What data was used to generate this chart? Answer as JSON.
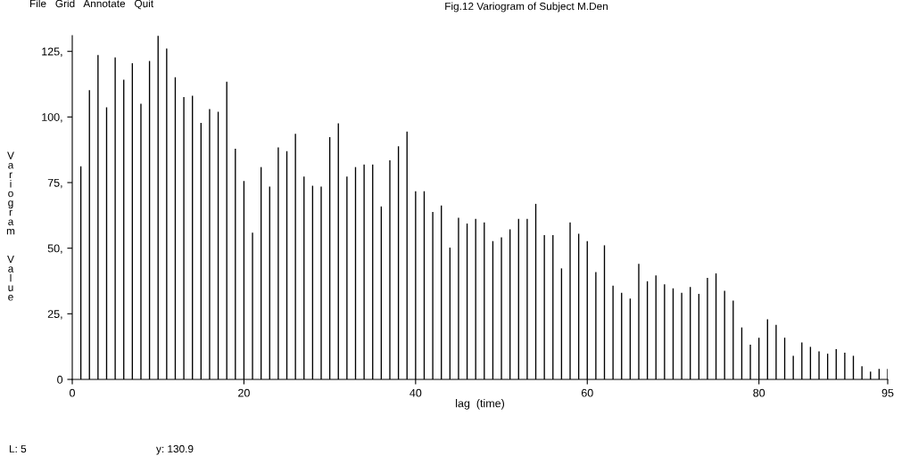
{
  "chart_data": {
    "type": "bar",
    "title": "Fig.12 Variogram of Subject M.Den",
    "xlabel": "lag  (time)",
    "ylabel": "Variogram  Value",
    "x": [
      1,
      2,
      3,
      4,
      5,
      6,
      7,
      8,
      9,
      10,
      11,
      12,
      13,
      14,
      15,
      16,
      17,
      18,
      19,
      20,
      21,
      22,
      23,
      24,
      25,
      26,
      27,
      28,
      29,
      30,
      31,
      32,
      33,
      34,
      35,
      36,
      37,
      38,
      39,
      40,
      41,
      42,
      43,
      44,
      45,
      46,
      47,
      48,
      49,
      50,
      51,
      52,
      53,
      54,
      55,
      56,
      57,
      58,
      59,
      60,
      61,
      62,
      63,
      64,
      65,
      66,
      67,
      68,
      69,
      70,
      71,
      72,
      73,
      74,
      75,
      76,
      77,
      78,
      79,
      80,
      81,
      82,
      83,
      84,
      85,
      86,
      87,
      88,
      89,
      90,
      91,
      92,
      93,
      94,
      95
    ],
    "values": [
      81.2,
      110.2,
      123.6,
      103.7,
      122.7,
      114.2,
      120.5,
      105,
      121.3,
      130.9,
      126.1,
      115.1,
      107.6,
      108.1,
      97.7,
      103,
      102,
      113.4,
      87.9,
      75.6,
      55.9,
      80.9,
      73.5,
      88.4,
      87,
      93.6,
      77.3,
      73.8,
      73.5,
      92.3,
      97.6,
      77.3,
      80.9,
      81.9,
      81.9,
      65.9,
      83.5,
      88.8,
      94.4,
      71.7,
      71.7,
      63.8,
      66.3,
      50.2,
      61.6,
      59.4,
      61.2,
      59.8,
      52.7,
      54.1,
      57.2,
      61.2,
      61.2,
      66.9,
      55,
      55,
      42.3,
      59.8,
      55.5,
      52.7,
      40.9,
      51.1,
      35.7,
      33,
      30.8,
      44,
      37.4,
      39.6,
      36.2,
      34.7,
      33,
      35.2,
      32.6,
      38.7,
      40.4,
      33.8,
      30,
      19.8,
      13.2,
      15.9,
      22.9,
      20.8,
      15.9,
      9,
      14.1,
      12.4,
      10.7,
      9.8,
      11.5,
      10.2,
      9,
      5,
      3,
      4,
      4
    ],
    "color": "#000000",
    "xlim": [
      0,
      95
    ],
    "xticks": [
      0,
      20,
      40,
      60,
      80,
      95
    ],
    "ylim": [
      0,
      131
    ],
    "yticks": [
      {
        "value": 0,
        "label": "0"
      },
      {
        "value": 25,
        "label": "25,"
      },
      {
        "value": 50,
        "label": "50,"
      },
      {
        "value": 75,
        "label": "75,"
      },
      {
        "value": 100,
        "label": "100,"
      },
      {
        "value": 125,
        "label": "125,"
      }
    ],
    "grid": false,
    "legend": false,
    "annotations": [
      "File   Grid   Annotate   Quit",
      "L: 5",
      "y: 130.9"
    ]
  }
}
